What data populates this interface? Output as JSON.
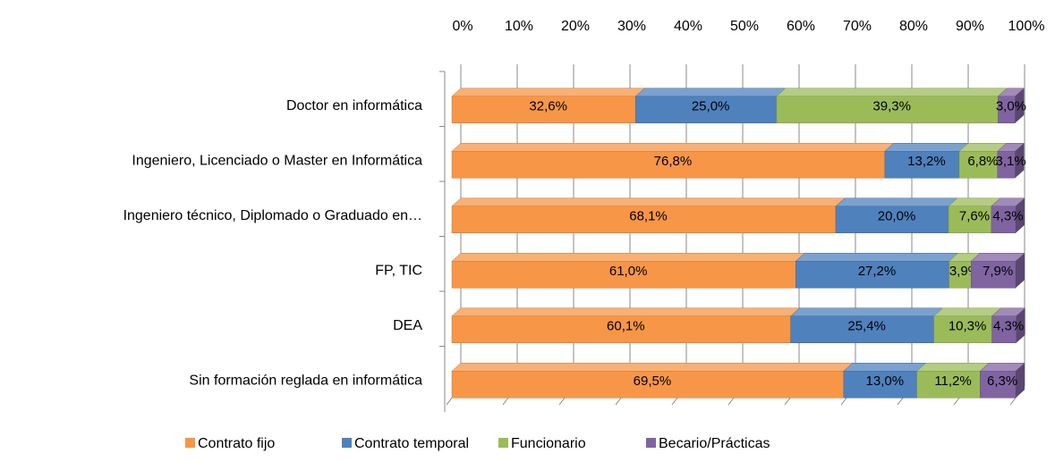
{
  "chart_data": {
    "type": "bar",
    "orientation": "horizontal",
    "stacked": true,
    "categories": [
      "Doctor en informática",
      "Ingeniero, Licenciado o Master en Informática",
      "Ingeniero técnico, Diplomado o Graduado en…",
      "FP, TIC",
      "DEA",
      "Sin formación reglada en informática"
    ],
    "series": [
      {
        "name": "Contrato fijo",
        "color": "#f79646",
        "values": [
          32.6,
          76.8,
          68.1,
          61.0,
          60.1,
          69.5
        ],
        "value_labels": [
          "32,6%",
          "76,8%",
          "68,1%",
          "61,0%",
          "60,1%",
          "69,5%"
        ]
      },
      {
        "name": "Contrato temporal",
        "color": "#4f81bd",
        "values": [
          25.0,
          13.2,
          20.0,
          27.2,
          25.4,
          13.0
        ],
        "value_labels": [
          "25,0%",
          "13,2%",
          "20,0%",
          "27,2%",
          "25,4%",
          "13,0%"
        ]
      },
      {
        "name": "Funcionario",
        "color": "#9bbb59",
        "values": [
          39.3,
          6.8,
          7.6,
          3.9,
          10.3,
          11.2
        ],
        "value_labels": [
          "39,3%",
          "6,8%",
          "7,6%",
          "3,9%",
          "10,3%",
          "11,2%"
        ]
      },
      {
        "name": "Becario/Prácticas",
        "color": "#8064a2",
        "values": [
          3.0,
          3.1,
          4.3,
          7.9,
          4.3,
          6.3
        ],
        "value_labels": [
          "3,0%",
          "3,1%",
          "4,3%",
          "7,9%",
          "4,3%",
          "6,3%"
        ]
      }
    ],
    "xlim": [
      0,
      100
    ],
    "xticks": [
      {
        "value": 0,
        "label": "0%"
      },
      {
        "value": 10,
        "label": "10%"
      },
      {
        "value": 20,
        "label": "20%"
      },
      {
        "value": 30,
        "label": "30%"
      },
      {
        "value": 40,
        "label": "40%"
      },
      {
        "value": 50,
        "label": "50%"
      },
      {
        "value": 60,
        "label": "60%"
      },
      {
        "value": 70,
        "label": "70%"
      },
      {
        "value": 80,
        "label": "80%"
      },
      {
        "value": 90,
        "label": "90%"
      },
      {
        "value": 100,
        "label": "100%"
      }
    ],
    "grid": true,
    "legend": "bottom"
  }
}
